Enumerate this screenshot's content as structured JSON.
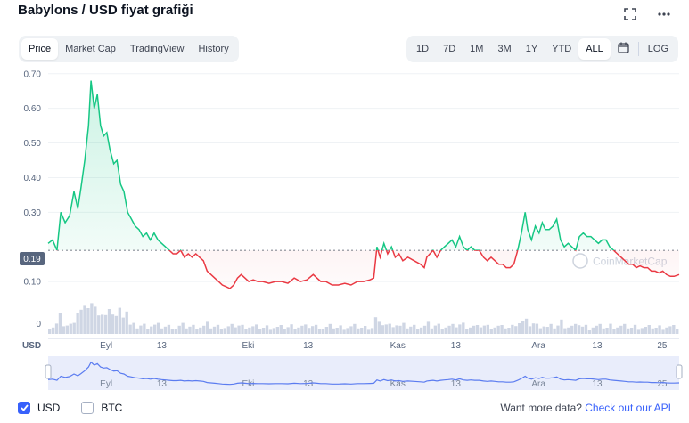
{
  "title": "Babylons / USD fiyat grafiği",
  "tabs": [
    {
      "label": "Price",
      "active": true
    },
    {
      "label": "Market Cap",
      "active": false
    },
    {
      "label": "TradingView",
      "active": false
    },
    {
      "label": "History",
      "active": false
    }
  ],
  "ranges": [
    {
      "label": "1D",
      "active": false
    },
    {
      "label": "7D",
      "active": false
    },
    {
      "label": "1M",
      "active": false
    },
    {
      "label": "3M",
      "active": false
    },
    {
      "label": "1Y",
      "active": false
    },
    {
      "label": "YTD",
      "active": false
    },
    {
      "label": "ALL",
      "active": true
    }
  ],
  "log_label": "LOG",
  "icons": {
    "fullscreen": "fullscreen-icon",
    "more": "more-dots-icon",
    "calendar": "calendar-icon"
  },
  "colors": {
    "up": "#16c784",
    "down": "#ea3943",
    "accent": "#3861fb",
    "volume": "#cfd6e4",
    "navigator": "#5b7cf0"
  },
  "chart_data": {
    "type": "line",
    "y_ticks": [
      {
        "label": "0.70",
        "value": 0.7
      },
      {
        "label": "0.60",
        "value": 0.6
      },
      {
        "label": "0.50",
        "value": 0.5
      },
      {
        "label": "0.40",
        "value": 0.4
      },
      {
        "label": "0.30",
        "value": 0.3
      },
      {
        "label": "0.10",
        "value": 0.1
      }
    ],
    "ylim": [
      0.0,
      0.72
    ],
    "baseline": {
      "label": "0.19",
      "value": 0.19
    },
    "volume_axis_label": "0",
    "y_unit": "USD",
    "x_range": [
      0,
      100
    ],
    "x_ticks": [
      {
        "label": "Eyl",
        "x": 9.2
      },
      {
        "label": "13",
        "x": 18
      },
      {
        "label": "Eki",
        "x": 31.7
      },
      {
        "label": "13",
        "x": 41.2
      },
      {
        "label": "Kas",
        "x": 55.4
      },
      {
        "label": "13",
        "x": 64.6
      },
      {
        "label": "Ara",
        "x": 77.7
      },
      {
        "label": "13",
        "x": 87
      },
      {
        "label": "25",
        "x": 97.3
      }
    ],
    "watermark": "CoinMarketCap",
    "price_series": [
      [
        0,
        0.21
      ],
      [
        0.7,
        0.22
      ],
      [
        1.4,
        0.19
      ],
      [
        2,
        0.3
      ],
      [
        2.7,
        0.27
      ],
      [
        3.4,
        0.29
      ],
      [
        4.1,
        0.36
      ],
      [
        4.7,
        0.31
      ],
      [
        5.2,
        0.37
      ],
      [
        5.8,
        0.45
      ],
      [
        6.4,
        0.55
      ],
      [
        6.8,
        0.68
      ],
      [
        7.3,
        0.6
      ],
      [
        7.8,
        0.64
      ],
      [
        8.3,
        0.55
      ],
      [
        8.8,
        0.52
      ],
      [
        9.3,
        0.53
      ],
      [
        9.8,
        0.48
      ],
      [
        10.4,
        0.44
      ],
      [
        10.9,
        0.45
      ],
      [
        11.5,
        0.38
      ],
      [
        12,
        0.36
      ],
      [
        12.6,
        0.3
      ],
      [
        13.2,
        0.28
      ],
      [
        13.8,
        0.26
      ],
      [
        14.4,
        0.25
      ],
      [
        15,
        0.23
      ],
      [
        15.6,
        0.24
      ],
      [
        16.2,
        0.22
      ],
      [
        16.8,
        0.24
      ],
      [
        17.4,
        0.22
      ],
      [
        18,
        0.21
      ],
      [
        18.6,
        0.2
      ],
      [
        19.2,
        0.19
      ],
      [
        19.8,
        0.18
      ],
      [
        20.4,
        0.18
      ],
      [
        21,
        0.19
      ],
      [
        21.6,
        0.17
      ],
      [
        22.2,
        0.18
      ],
      [
        22.8,
        0.17
      ],
      [
        23.4,
        0.18
      ],
      [
        24,
        0.17
      ],
      [
        24.6,
        0.16
      ],
      [
        25.2,
        0.13
      ],
      [
        25.8,
        0.12
      ],
      [
        26.4,
        0.11
      ],
      [
        27,
        0.1
      ],
      [
        27.6,
        0.09
      ],
      [
        28.2,
        0.085
      ],
      [
        28.8,
        0.08
      ],
      [
        29.4,
        0.09
      ],
      [
        30,
        0.11
      ],
      [
        30.6,
        0.12
      ],
      [
        31.2,
        0.11
      ],
      [
        31.8,
        0.1
      ],
      [
        32.5,
        0.105
      ],
      [
        33.2,
        0.1
      ],
      [
        34,
        0.1
      ],
      [
        35,
        0.095
      ],
      [
        36,
        0.1
      ],
      [
        37,
        0.1
      ],
      [
        38,
        0.095
      ],
      [
        39,
        0.11
      ],
      [
        40,
        0.1
      ],
      [
        41,
        0.105
      ],
      [
        42,
        0.12
      ],
      [
        42.6,
        0.11
      ],
      [
        43.2,
        0.1
      ],
      [
        44,
        0.1
      ],
      [
        45,
        0.09
      ],
      [
        46,
        0.09
      ],
      [
        47,
        0.095
      ],
      [
        48,
        0.09
      ],
      [
        49,
        0.1
      ],
      [
        50,
        0.1
      ],
      [
        51,
        0.105
      ],
      [
        51.6,
        0.11
      ],
      [
        52.1,
        0.2
      ],
      [
        52.6,
        0.17
      ],
      [
        53.2,
        0.21
      ],
      [
        53.8,
        0.18
      ],
      [
        54.4,
        0.2
      ],
      [
        55,
        0.17
      ],
      [
        55.6,
        0.18
      ],
      [
        56.2,
        0.16
      ],
      [
        57,
        0.17
      ],
      [
        58,
        0.16
      ],
      [
        59,
        0.15
      ],
      [
        59.6,
        0.14
      ],
      [
        60,
        0.17
      ],
      [
        60.5,
        0.18
      ],
      [
        61,
        0.19
      ],
      [
        61.6,
        0.17
      ],
      [
        62.2,
        0.19
      ],
      [
        62.8,
        0.2
      ],
      [
        63.4,
        0.21
      ],
      [
        64,
        0.22
      ],
      [
        64.6,
        0.2
      ],
      [
        65.2,
        0.23
      ],
      [
        65.8,
        0.2
      ],
      [
        66.4,
        0.19
      ],
      [
        67,
        0.2
      ],
      [
        67.6,
        0.19
      ],
      [
        68.3,
        0.19
      ],
      [
        69,
        0.17
      ],
      [
        69.6,
        0.16
      ],
      [
        70.2,
        0.17
      ],
      [
        70.8,
        0.16
      ],
      [
        71.4,
        0.15
      ],
      [
        72,
        0.15
      ],
      [
        72.6,
        0.14
      ],
      [
        73.2,
        0.14
      ],
      [
        73.8,
        0.15
      ],
      [
        74.4,
        0.19
      ],
      [
        75,
        0.24
      ],
      [
        75.6,
        0.3
      ],
      [
        76,
        0.25
      ],
      [
        76.6,
        0.22
      ],
      [
        77.2,
        0.26
      ],
      [
        77.8,
        0.24
      ],
      [
        78.3,
        0.27
      ],
      [
        78.8,
        0.25
      ],
      [
        79.4,
        0.25
      ],
      [
        80,
        0.26
      ],
      [
        80.6,
        0.28
      ],
      [
        81.2,
        0.22
      ],
      [
        81.8,
        0.2
      ],
      [
        82.4,
        0.21
      ],
      [
        83,
        0.2
      ],
      [
        83.6,
        0.19
      ],
      [
        84.2,
        0.23
      ],
      [
        84.8,
        0.24
      ],
      [
        85.4,
        0.23
      ],
      [
        86,
        0.23
      ],
      [
        86.6,
        0.22
      ],
      [
        87.2,
        0.21
      ],
      [
        87.8,
        0.22
      ],
      [
        88.4,
        0.22
      ],
      [
        89,
        0.2
      ],
      [
        89.6,
        0.19
      ],
      [
        90.2,
        0.18
      ],
      [
        90.8,
        0.17
      ],
      [
        91.4,
        0.16
      ],
      [
        92,
        0.15
      ],
      [
        92.6,
        0.15
      ],
      [
        93.2,
        0.14
      ],
      [
        93.8,
        0.145
      ],
      [
        94.4,
        0.14
      ],
      [
        95,
        0.14
      ],
      [
        95.6,
        0.13
      ],
      [
        96.2,
        0.13
      ],
      [
        96.8,
        0.125
      ],
      [
        97.4,
        0.13
      ],
      [
        98,
        0.12
      ],
      [
        98.6,
        0.115
      ],
      [
        99.2,
        0.115
      ],
      [
        100,
        0.12
      ]
    ]
  },
  "footer": {
    "usd_label": "USD",
    "btc_label": "BTC",
    "usd_checked": true,
    "btc_checked": false,
    "more_text": "Want more data?",
    "api_link": "Check out our API"
  }
}
